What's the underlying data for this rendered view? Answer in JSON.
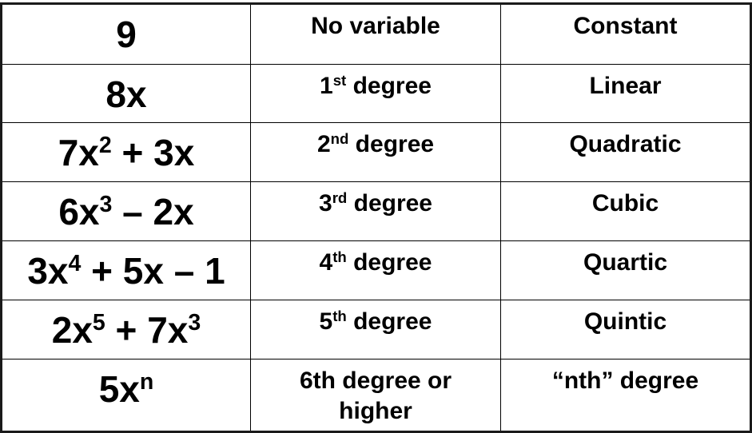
{
  "rows": [
    {
      "expr": [
        {
          "text": "9"
        }
      ],
      "degree": [
        {
          "text": "No variable"
        }
      ],
      "name": "Constant"
    },
    {
      "expr": [
        {
          "text": "8x"
        }
      ],
      "degree": [
        {
          "text": "1"
        },
        {
          "text": "st",
          "sup": true
        },
        {
          "text": " degree"
        }
      ],
      "name": "Linear"
    },
    {
      "expr": [
        {
          "text": "7x"
        },
        {
          "text": "2",
          "sup": true
        },
        {
          "text": " + 3x"
        }
      ],
      "degree": [
        {
          "text": "2"
        },
        {
          "text": "nd",
          "sup": true
        },
        {
          "text": " degree"
        }
      ],
      "name": "Quadratic"
    },
    {
      "expr": [
        {
          "text": "6x"
        },
        {
          "text": "3",
          "sup": true
        },
        {
          "text": " – 2x"
        }
      ],
      "degree": [
        {
          "text": "3"
        },
        {
          "text": "rd",
          "sup": true
        },
        {
          "text": " degree"
        }
      ],
      "name": "Cubic"
    },
    {
      "expr": [
        {
          "text": "3x"
        },
        {
          "text": "4",
          "sup": true
        },
        {
          "text": " + 5x – 1"
        }
      ],
      "degree": [
        {
          "text": "4"
        },
        {
          "text": "th",
          "sup": true
        },
        {
          "text": " degree"
        }
      ],
      "name": "Quartic"
    },
    {
      "expr": [
        {
          "text": "2x"
        },
        {
          "text": "5",
          "sup": true
        },
        {
          "text": " + 7x"
        },
        {
          "text": "3",
          "sup": true
        }
      ],
      "degree": [
        {
          "text": "5"
        },
        {
          "text": "th",
          "sup": true
        },
        {
          "text": " degree"
        }
      ],
      "name": "Quintic"
    },
    {
      "expr": [
        {
          "text": "5x"
        },
        {
          "text": "n",
          "sup": true
        }
      ],
      "degree": [
        {
          "text": "6th degree or higher"
        }
      ],
      "name": "“nth” degree"
    }
  ]
}
